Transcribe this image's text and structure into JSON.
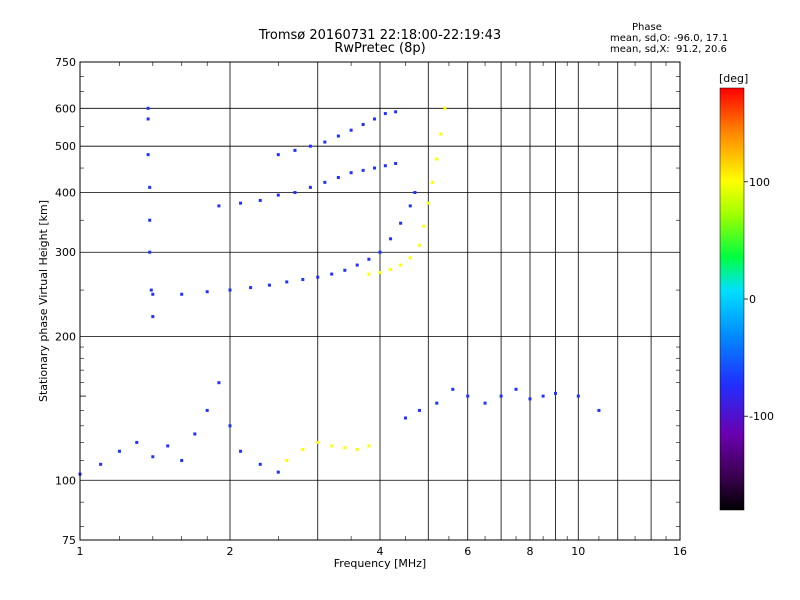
{
  "header": {
    "title_line1": "Tromsø 20160731 22:18:00-22:19:43",
    "title_line2": "RwPretec (8p)",
    "stats_heading": "Phase",
    "stats_o": "mean, sd,O: -96.0, 17.1",
    "stats_x": "mean, sd,X:  91.2, 20.6"
  },
  "chart_data": {
    "type": "scatter",
    "title": "Tromsø 20160731 22:18:00-22:19:43",
    "subtitle": "RwPretec (8p)",
    "xlabel": "Frequency [MHz]",
    "ylabel": "Stationary phase Virtual Height [km]",
    "x_scale": "log",
    "y_scale": "log",
    "xlim": [
      1,
      16
    ],
    "ylim": [
      75,
      750
    ],
    "x_ticks": [
      1,
      2,
      4,
      6,
      8,
      10,
      16
    ],
    "x_minor_ticks": [
      3,
      5,
      7,
      9,
      12,
      14
    ],
    "y_ticks": [
      75,
      100,
      200,
      300,
      400,
      500,
      600,
      750
    ],
    "y_minor_ticks": [
      150
    ],
    "grid": true,
    "colorbar": {
      "label": "[deg]",
      "ticks": [
        100,
        0,
        -100
      ],
      "range": [
        -180,
        180
      ],
      "colors": [
        "#000000",
        "#3b0050",
        "#6a00b0",
        "#2030ff",
        "#0090ff",
        "#00e0ff",
        "#00ff40",
        "#a0ff00",
        "#ffff00",
        "#ff8000",
        "#ff0000"
      ]
    },
    "series": [
      {
        "points": [
          [
            2.5,
            480
          ],
          [
            2.7,
            490
          ],
          [
            2.9,
            500
          ],
          [
            3.1,
            510
          ],
          [
            3.3,
            525
          ],
          [
            3.5,
            540
          ],
          [
            3.7,
            555
          ],
          [
            3.9,
            570
          ],
          [
            4.1,
            585
          ],
          [
            4.3,
            590
          ]
        ],
        "color": "#2030ff"
      },
      {
        "points": [
          [
            1.9,
            375
          ],
          [
            2.1,
            380
          ],
          [
            2.3,
            385
          ],
          [
            2.5,
            395
          ],
          [
            2.7,
            400
          ],
          [
            2.9,
            410
          ],
          [
            3.1,
            420
          ],
          [
            3.3,
            430
          ],
          [
            3.5,
            440
          ],
          [
            3.7,
            445
          ],
          [
            3.9,
            450
          ],
          [
            4.1,
            455
          ],
          [
            4.3,
            460
          ]
        ],
        "color": "#2030ff"
      },
      {
        "points": [
          [
            1.4,
            245
          ],
          [
            1.6,
            245
          ],
          [
            1.8,
            248
          ],
          [
            2.0,
            250
          ],
          [
            2.2,
            253
          ],
          [
            2.4,
            256
          ],
          [
            2.6,
            260
          ],
          [
            2.8,
            263
          ],
          [
            3.0,
            266
          ],
          [
            3.2,
            270
          ],
          [
            3.4,
            275
          ],
          [
            3.6,
            282
          ],
          [
            3.8,
            290
          ],
          [
            4.0,
            300
          ],
          [
            4.2,
            320
          ],
          [
            4.4,
            345
          ],
          [
            4.6,
            375
          ],
          [
            4.7,
            400
          ]
        ],
        "color": "#2030ff"
      },
      {
        "points": [
          [
            3.8,
            270
          ],
          [
            4.0,
            272
          ],
          [
            4.2,
            276
          ],
          [
            4.4,
            282
          ],
          [
            4.6,
            292
          ],
          [
            4.8,
            310
          ],
          [
            4.9,
            340
          ],
          [
            5.0,
            380
          ],
          [
            5.1,
            420
          ],
          [
            5.2,
            470
          ],
          [
            5.3,
            530
          ],
          [
            5.4,
            600
          ]
        ],
        "color": "#ffff00"
      },
      {
        "points": [
          [
            1.0,
            103
          ],
          [
            1.1,
            108
          ],
          [
            1.2,
            115
          ],
          [
            1.3,
            120
          ],
          [
            1.4,
            112
          ],
          [
            1.5,
            118
          ],
          [
            1.6,
            110
          ],
          [
            1.7,
            125
          ],
          [
            1.8,
            140
          ],
          [
            1.9,
            160
          ],
          [
            2.0,
            130
          ],
          [
            2.1,
            115
          ],
          [
            2.3,
            108
          ],
          [
            2.5,
            104
          ]
        ],
        "color": "#2030ff"
      },
      {
        "points": [
          [
            2.6,
            110
          ],
          [
            2.8,
            116
          ],
          [
            3.0,
            120
          ],
          [
            3.2,
            118
          ],
          [
            3.4,
            117
          ],
          [
            3.6,
            116
          ],
          [
            3.8,
            118
          ]
        ],
        "color": "#ffff00"
      },
      {
        "points": [
          [
            4.5,
            135
          ],
          [
            4.8,
            140
          ],
          [
            5.2,
            145
          ],
          [
            5.6,
            155
          ],
          [
            6.0,
            150
          ],
          [
            6.5,
            145
          ],
          [
            7.0,
            150
          ],
          [
            7.5,
            155
          ],
          [
            8.0,
            148
          ],
          [
            8.5,
            150
          ],
          [
            9.0,
            152
          ],
          [
            10.0,
            150
          ],
          [
            11.0,
            140
          ]
        ],
        "color": "#2030ff"
      },
      {
        "points": [
          [
            1.37,
            600
          ],
          [
            1.37,
            570
          ],
          [
            1.37,
            480
          ],
          [
            1.38,
            410
          ],
          [
            1.38,
            350
          ],
          [
            1.38,
            300
          ],
          [
            1.39,
            250
          ],
          [
            1.4,
            220
          ]
        ],
        "color": "#2030ff"
      }
    ]
  }
}
